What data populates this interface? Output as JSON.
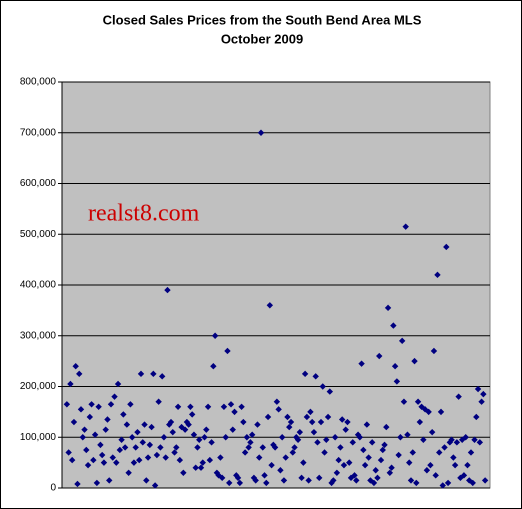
{
  "chart_data": {
    "type": "scatter",
    "title": "Closed Sales Prices from the South Bend Area MLS",
    "subtitle": "October 2009",
    "annotation": "realst8.com",
    "color": "#000080",
    "background": "#c0c0c0",
    "grid": true,
    "ylim": [
      0,
      800000
    ],
    "yticks": [
      0,
      {
        "value": 100000,
        "label": "100,000"
      },
      {
        "value": 200000,
        "label": "200,000"
      },
      {
        "value": 300000,
        "label": "300,000"
      },
      {
        "value": 400000,
        "label": "400,000"
      },
      {
        "value": 500000,
        "label": "500,000"
      },
      {
        "value": 600000,
        "label": "600,000"
      },
      {
        "value": 700000,
        "label": "700,000"
      },
      {
        "value": 800000,
        "label": "800,000"
      }
    ],
    "values": [
      165000,
      70000,
      205000,
      55000,
      130000,
      240000,
      8000,
      225000,
      155000,
      100000,
      115000,
      75000,
      45000,
      140000,
      165000,
      55000,
      105000,
      10000,
      160000,
      85000,
      65000,
      50000,
      115000,
      135000,
      15000,
      165000,
      60000,
      180000,
      50000,
      205000,
      75000,
      95000,
      145000,
      80000,
      125000,
      30000,
      165000,
      100000,
      50000,
      80000,
      110000,
      55000,
      225000,
      90000,
      125000,
      15000,
      60000,
      85000,
      120000,
      225000,
      5000,
      65000,
      170000,
      80000,
      220000,
      100000,
      60000,
      390000,
      125000,
      130000,
      110000,
      70000,
      80000,
      160000,
      55000,
      120000,
      30000,
      115000,
      130000,
      125000,
      160000,
      145000,
      105000,
      40000,
      80000,
      95000,
      40000,
      50000,
      100000,
      115000,
      160000,
      55000,
      90000,
      240000,
      300000,
      30000,
      25000,
      60000,
      20000,
      160000,
      100000,
      270000,
      10000,
      165000,
      115000,
      150000,
      25000,
      20000,
      10000,
      160000,
      130000,
      70000,
      100000,
      80000,
      90000,
      105000,
      20000,
      15000,
      125000,
      60000,
      700000,
      80000,
      25000,
      10000,
      140000,
      360000,
      45000,
      85000,
      80000,
      170000,
      155000,
      35000,
      100000,
      15000,
      60000,
      140000,
      120000,
      130000,
      70000,
      80000,
      100000,
      95000,
      110000,
      20000,
      50000,
      225000,
      140000,
      15000,
      150000,
      130000,
      110000,
      220000,
      90000,
      20000,
      130000,
      200000,
      70000,
      95000,
      140000,
      190000,
      10000,
      15000,
      100000,
      30000,
      55000,
      80000,
      135000,
      45000,
      115000,
      130000,
      50000,
      20000,
      90000,
      25000,
      15000,
      105000,
      100000,
      245000,
      75000,
      45000,
      125000,
      60000,
      15000,
      90000,
      10000,
      35000,
      20000,
      260000,
      55000,
      75000,
      85000,
      120000,
      355000,
      30000,
      40000,
      320000,
      240000,
      210000,
      65000,
      100000,
      290000,
      170000,
      515000,
      105000,
      50000,
      15000,
      70000,
      250000,
      10000,
      170000,
      130000,
      160000,
      95000,
      155000,
      35000,
      150000,
      45000,
      110000,
      270000,
      25000,
      420000,
      70000,
      150000,
      5000,
      80000,
      475000,
      10000,
      90000,
      95000,
      60000,
      45000,
      90000,
      180000,
      20000,
      95000,
      25000,
      100000,
      45000,
      15000,
      70000,
      10000,
      95000,
      140000,
      195000,
      90000,
      170000,
      185000,
      15000
    ]
  }
}
